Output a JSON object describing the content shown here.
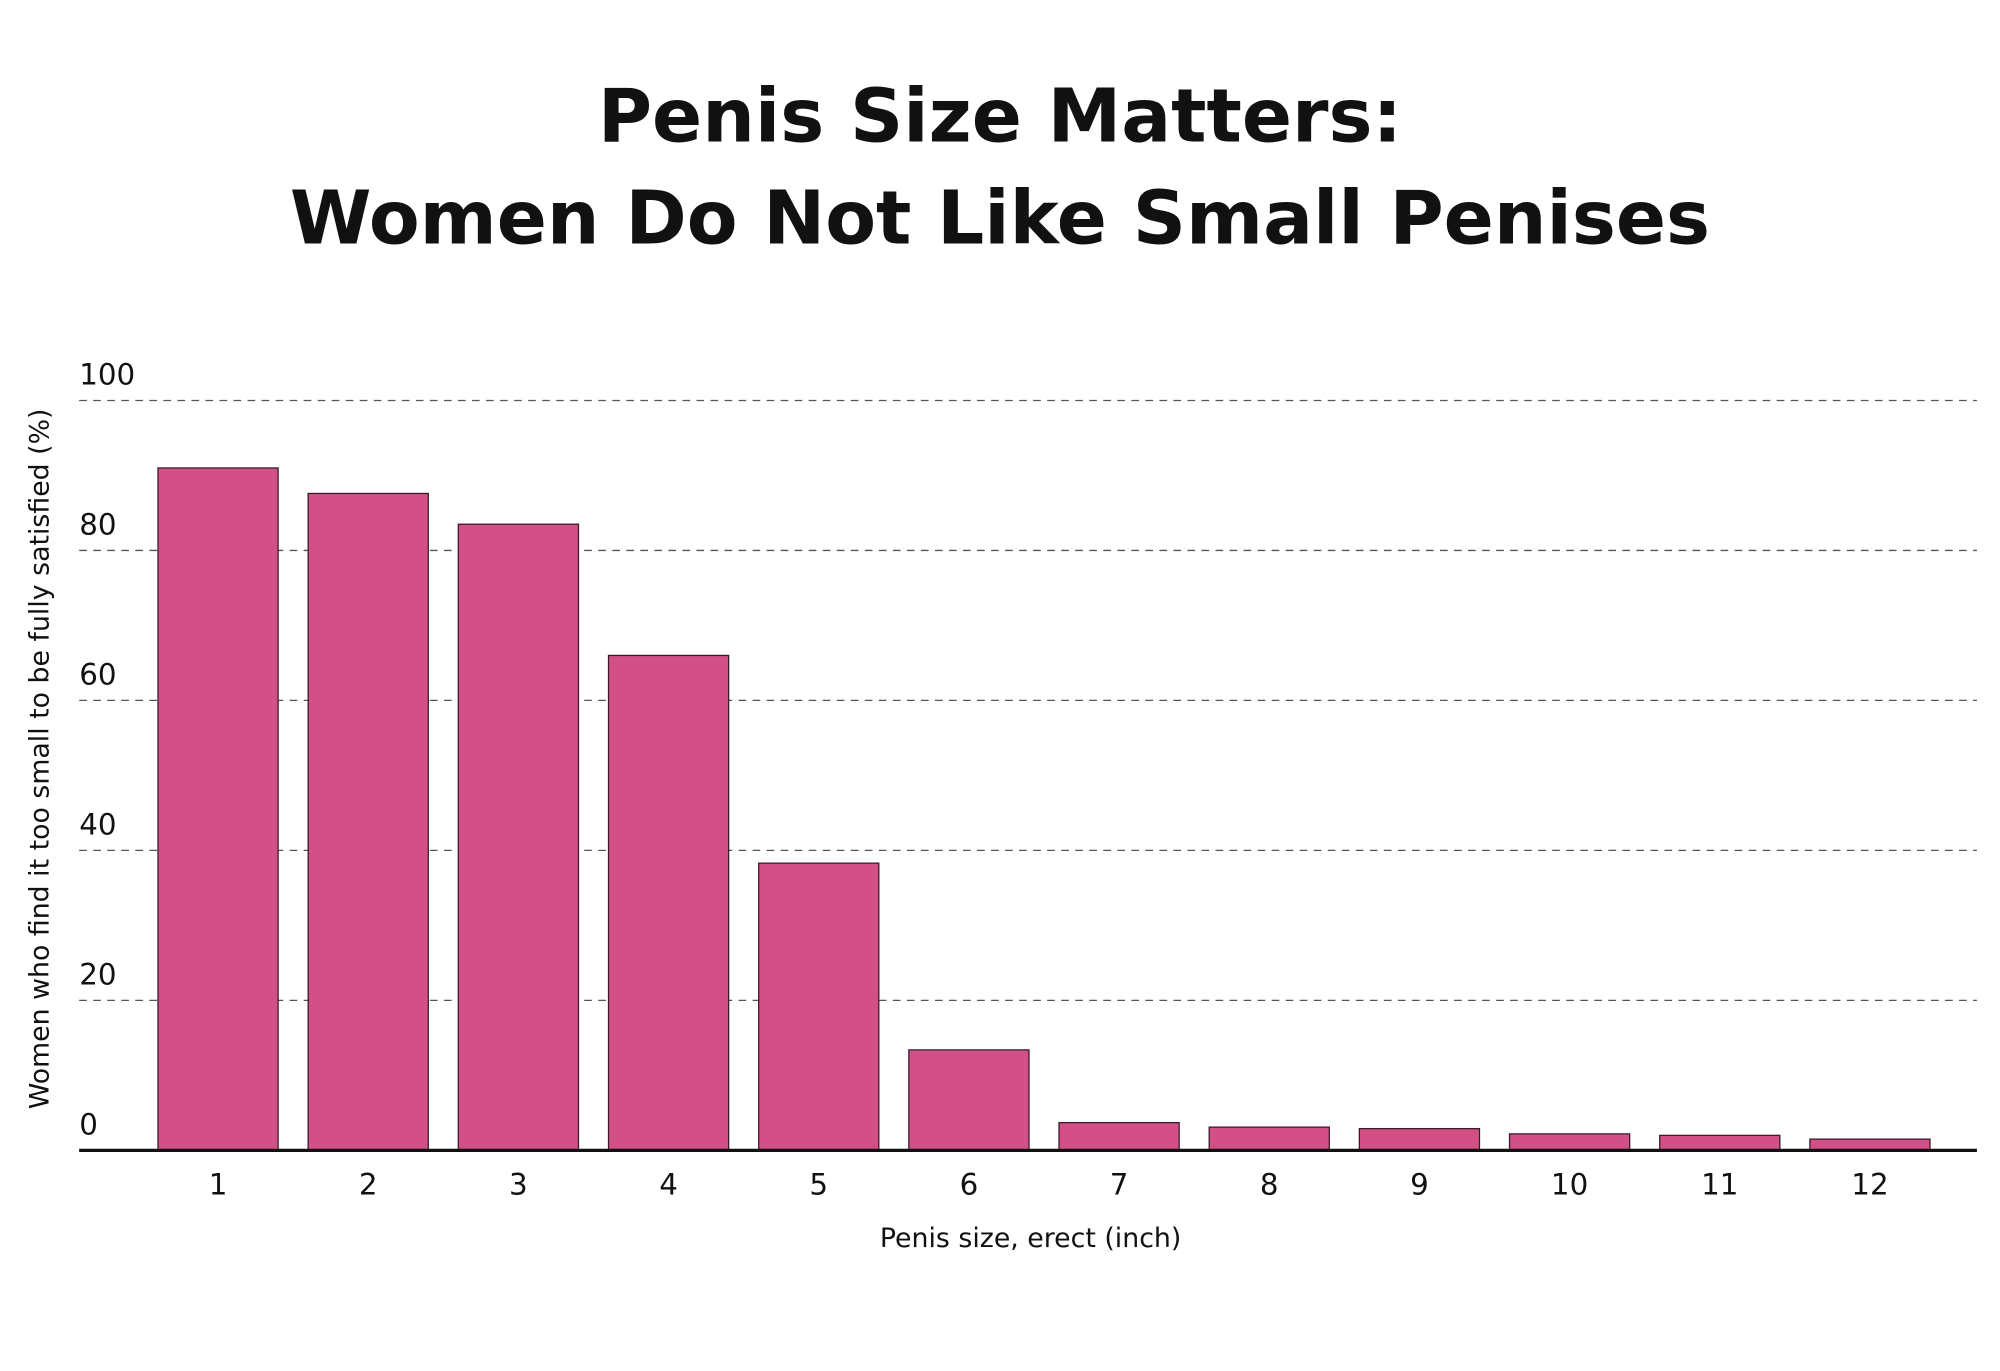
{
  "chart_data": {
    "type": "bar",
    "title": [
      "Penis Size Matters:",
      "Women Do Not Like Small Penises"
    ],
    "x_label": "Penis size, erect (inch)",
    "y_label": "Women who find it too small to be fully satisfied (%)",
    "categories": [
      "1",
      "2",
      "3",
      "4",
      "5",
      "6",
      "7",
      "8",
      "9",
      "10",
      "11",
      "12"
    ],
    "values": [
      91.0,
      87.6,
      83.5,
      66.0,
      38.3,
      13.4,
      3.7,
      3.1,
      2.9,
      2.2,
      2.0,
      1.5
    ],
    "color": "#d35087",
    "ylim": [
      0,
      100
    ],
    "yticks": [
      0,
      20,
      40,
      60,
      80,
      100
    ],
    "grid": true
  }
}
